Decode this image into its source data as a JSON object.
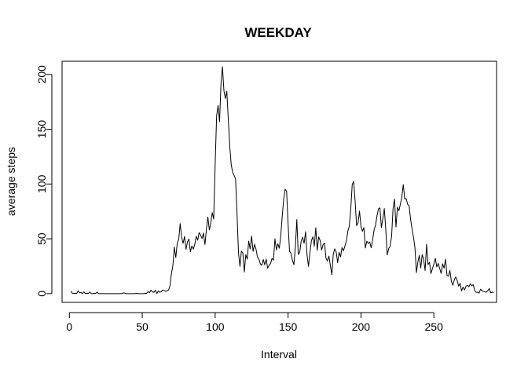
{
  "chart_data": {
    "type": "line",
    "title": "WEEKDAY",
    "xlabel": "Interval",
    "ylabel": "average steps",
    "xlim": [
      -5,
      293
    ],
    "ylim": [
      -8,
      212
    ],
    "x_ticks": [
      0,
      50,
      100,
      150,
      200,
      250
    ],
    "y_ticks": [
      0,
      50,
      100,
      150,
      200
    ],
    "x_tick_labels": [
      "0",
      "50",
      "100",
      "150",
      "200",
      "250"
    ],
    "y_tick_labels": [
      "0",
      "50",
      "100",
      "150",
      "200"
    ],
    "grid": false,
    "legend": "none",
    "line_color": "#000000",
    "series": [
      {
        "x_start": 1,
        "x_step": 1,
        "values": [
          2.3,
          0.4,
          0.2,
          0.2,
          0.1,
          2.5,
          0.7,
          1.1,
          0,
          1.6,
          0,
          0.3,
          0.2,
          1.4,
          0,
          0,
          0.2,
          0.2,
          1.4,
          0,
          0,
          0,
          0,
          0,
          0,
          0,
          0,
          0,
          0,
          0,
          0,
          0,
          0,
          0,
          0,
          0,
          0.7,
          0.4,
          0,
          0,
          0,
          0,
          0,
          0,
          0,
          0.3,
          0,
          0,
          0,
          0,
          0,
          0.3,
          0.2,
          1.8,
          0.8,
          3.2,
          1.5,
          1.2,
          3.1,
          0,
          2.5,
          1.2,
          1.7,
          3.2,
          2.8,
          2.1,
          2.5,
          3.2,
          7.0,
          18.1,
          25.6,
          42.5,
          32.9,
          46.1,
          49.4,
          63.8,
          51.4,
          45.8,
          52.2,
          40.4,
          47.0,
          49.9,
          38.1,
          43.5,
          40.6,
          44.8,
          52.3,
          48.7,
          55.7,
          53.4,
          50.3,
          55.2,
          44.8,
          58.8,
          69.8,
          58.1,
          64.8,
          73.8,
          68.0,
          118.3,
          162.1,
          171.6,
          156.9,
          191.5,
          207.0,
          185.2,
          178.0,
          184.6,
          158.9,
          134.3,
          117.9,
          110.3,
          107.8,
          104.5,
          72.3,
          37.2,
          24.8,
          38.8,
          37.0,
          19.7,
          35.6,
          31.4,
          47.9,
          40.7,
          52.6,
          38.5,
          45.0,
          40.6,
          33.5,
          31.4,
          27.1,
          25.8,
          31.1,
          26.3,
          31.4,
          23.2,
          26.0,
          27.4,
          32.1,
          30.6,
          50.0,
          39.9,
          45.5,
          41.4,
          53.1,
          70.6,
          86.1,
          95.4,
          93.3,
          64.1,
          38.5,
          36.8,
          30.5,
          26.3,
          42.3,
          67.6,
          35.8,
          37.7,
          47.9,
          51.6,
          46.0,
          56.5,
          35.6,
          24.8,
          37.5,
          48.3,
          51.8,
          43.4,
          60.2,
          39.5,
          51.8,
          48.4,
          39.8,
          44.7,
          46.2,
          32.4,
          29.8,
          34.2,
          25.7,
          17.3,
          36.0,
          40.8,
          38.0,
          28.2,
          37.7,
          33.5,
          42.0,
          39.1,
          43.5,
          48.1,
          57.0,
          61.5,
          77.3,
          99.6,
          102.4,
          84.0,
          62.0,
          64.5,
          75.3,
          61.2,
          56.9,
          60.2,
          41.6,
          47.8,
          45.8,
          47.1,
          41.8,
          49.1,
          58.2,
          62.5,
          71.1,
          77.3,
          78.2,
          60.4,
          68.2,
          77.6,
          59.0,
          35.3,
          41.1,
          43.1,
          52.2,
          77.4,
          86.3,
          60.7,
          78.9,
          75.6,
          81.5,
          87.9,
          99.5,
          86.5,
          86.6,
          81.5,
          80.1,
          68.2,
          59.4,
          51.5,
          42.4,
          19.1,
          28.6,
          35.0,
          23.3,
          35.6,
          31.0,
          21.1,
          45.0,
          26.5,
          28.6,
          18.3,
          22.8,
          26.9,
          32.2,
          24.3,
          27.5,
          22.9,
          18.4,
          27.2,
          23.2,
          31.4,
          16.7,
          15.9,
          21.1,
          11.1,
          7.6,
          12.6,
          15.2,
          11.9,
          6.8,
          9.4,
          2.5,
          6.0,
          3.3,
          6.6,
          7.6,
          6.2,
          9.0,
          7.2,
          8.1,
          2.7,
          1.2,
          1.3,
          0.5,
          4.0,
          2.6,
          2.0,
          1.6,
          1.3,
          2.8,
          4.6,
          0.7,
          1.4,
          0.8
        ]
      }
    ]
  }
}
